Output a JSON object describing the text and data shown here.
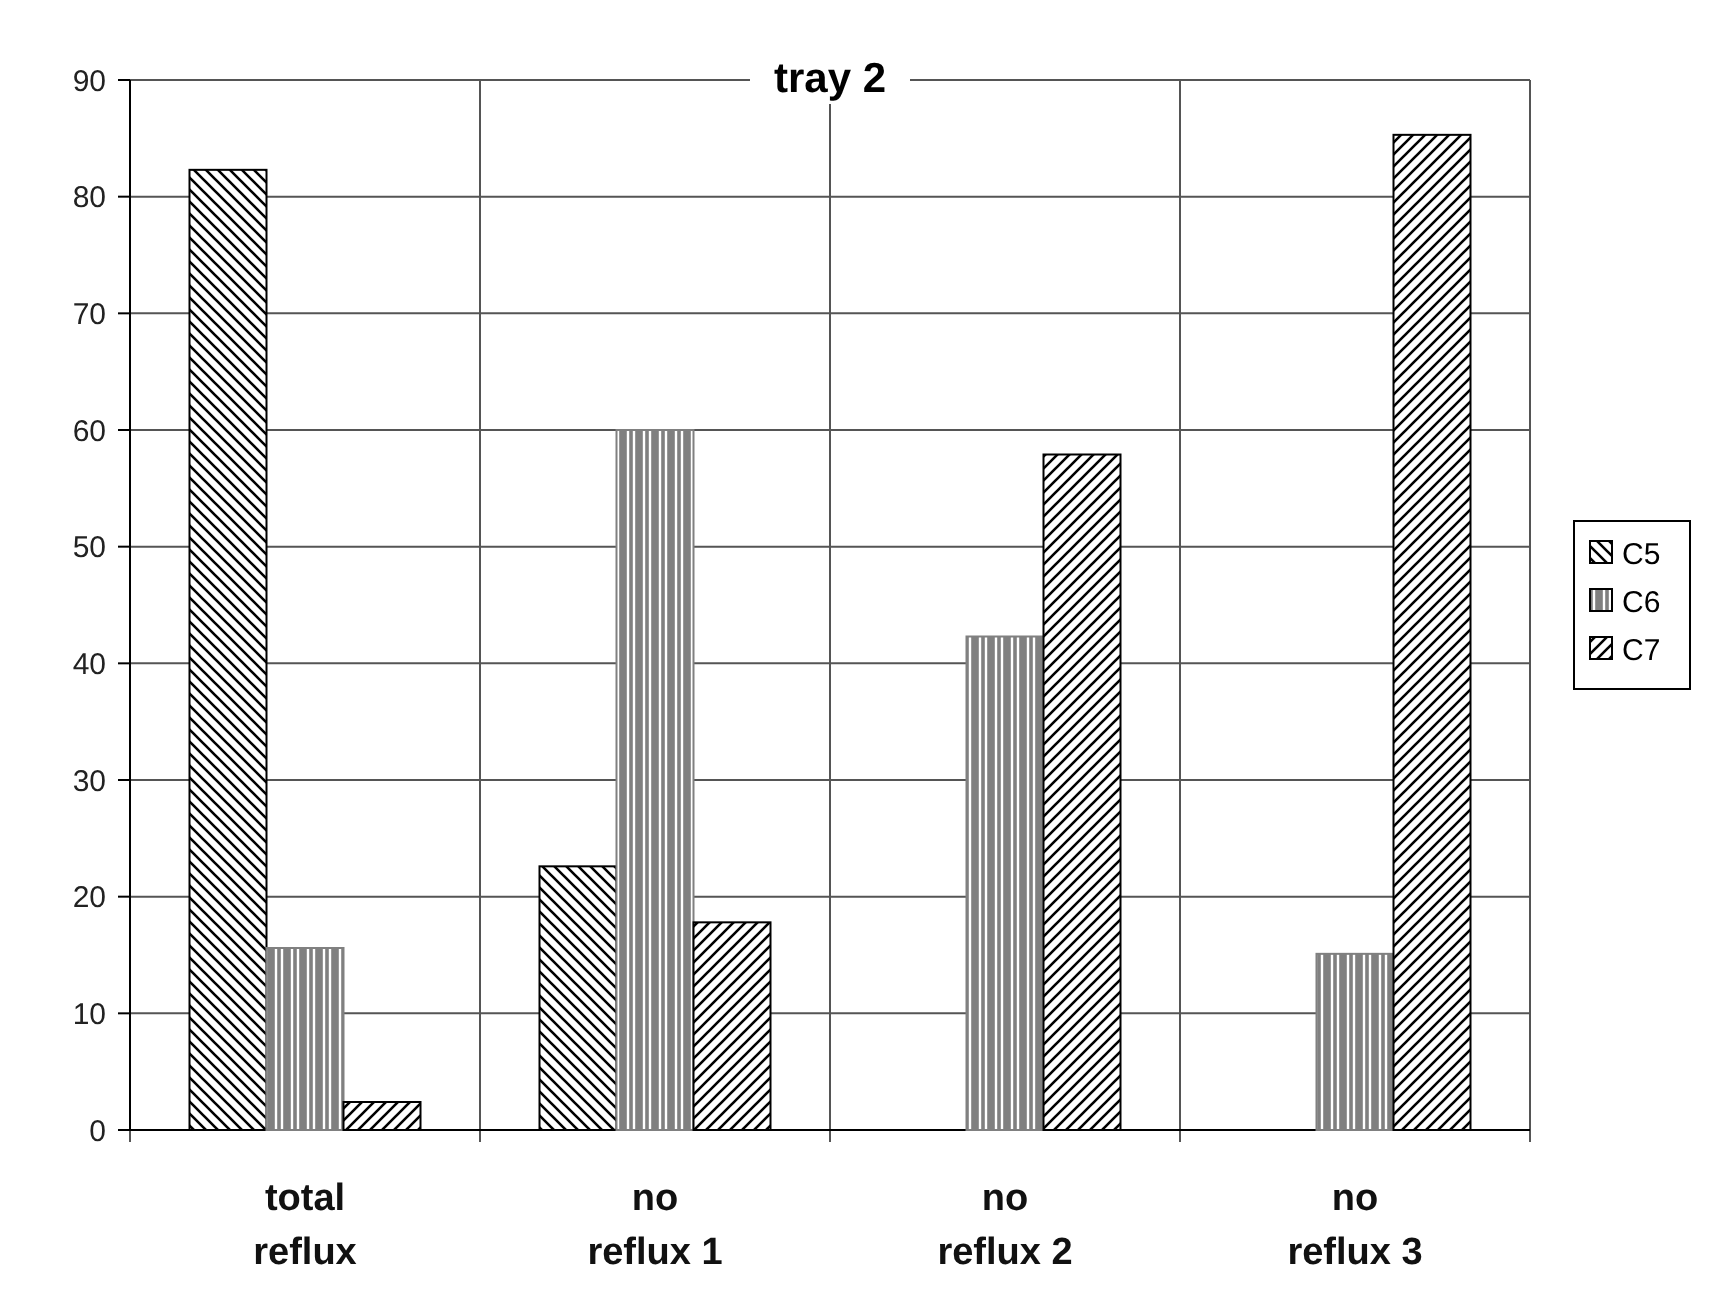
{
  "chart_data": {
    "type": "bar",
    "title": "tray 2",
    "categories": [
      "total reflux",
      "no reflux 1",
      "no reflux 2",
      "no reflux 3"
    ],
    "series": [
      {
        "name": "C5",
        "color": "#000000",
        "values": [
          82.3,
          22.6,
          0,
          0
        ]
      },
      {
        "name": "C6",
        "color": "#808080",
        "values": [
          15.6,
          60,
          42.3,
          15.1
        ]
      },
      {
        "name": "C7",
        "color": "#000000",
        "values": [
          2.4,
          17.8,
          57.9,
          85.3
        ]
      }
    ],
    "ylim": [
      0,
      90
    ],
    "yticks": [
      0,
      10,
      20,
      30,
      40,
      50,
      60,
      70,
      80,
      90
    ],
    "grid": true,
    "legend": "right"
  }
}
